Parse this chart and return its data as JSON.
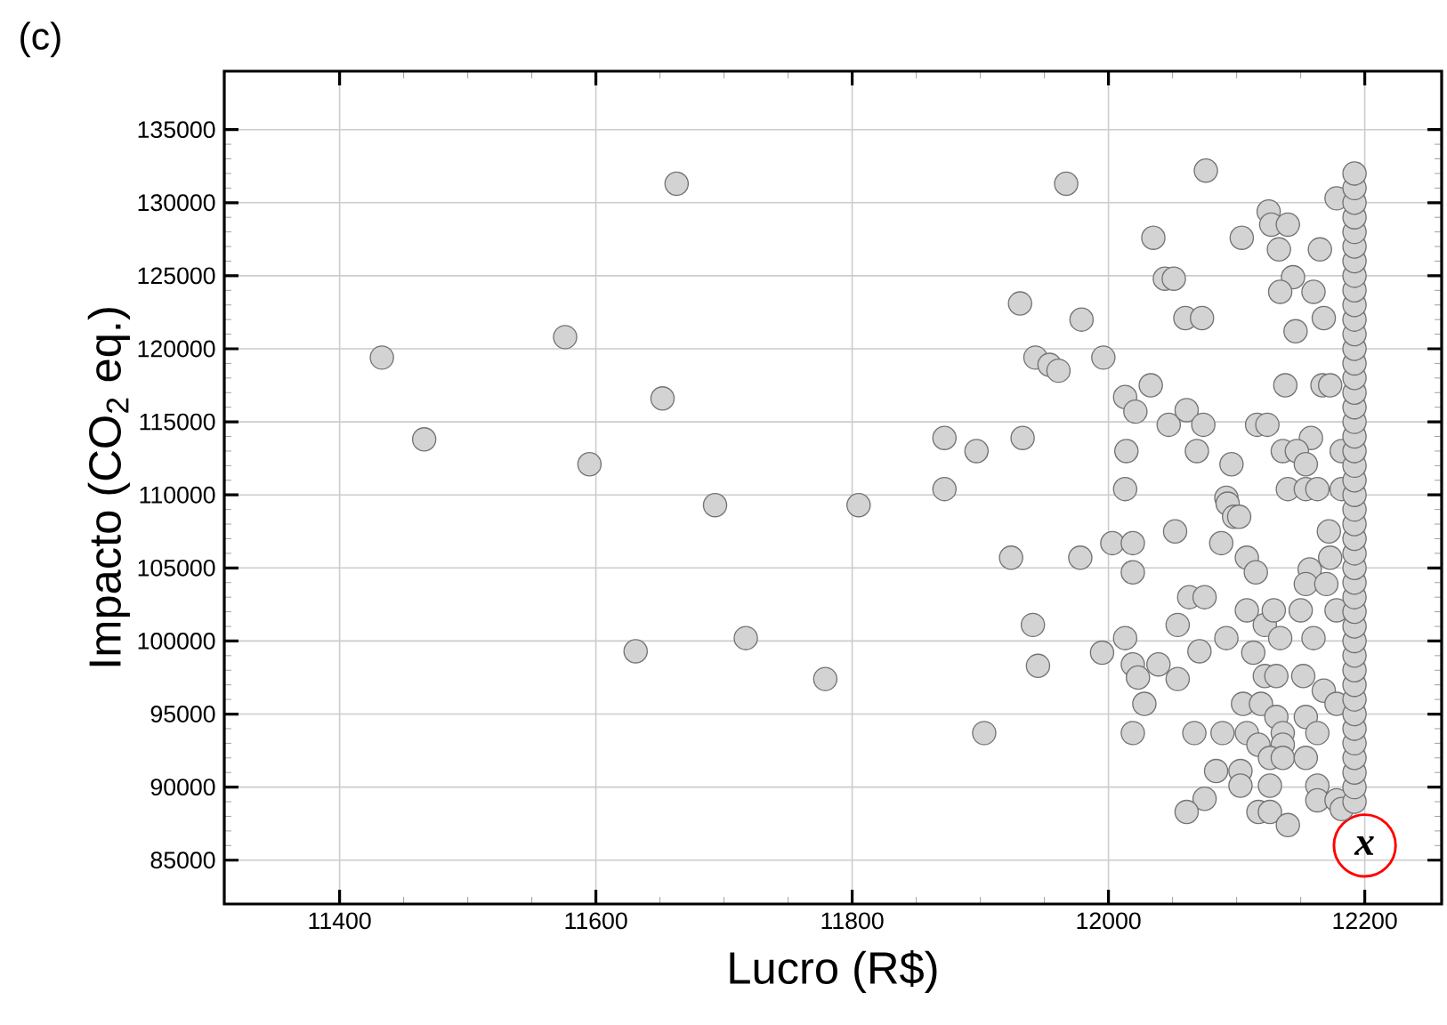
{
  "chart_data": {
    "type": "scatter",
    "xlabel": "Lucro (R$)",
    "ylabel": "Impacto (CO$_{2}$ eq.)",
    "annotations": [
      "(c)",
      {
        "text": "x",
        "x": 12200,
        "y": 86000
      }
    ],
    "xlim": [
      11310,
      12260
    ],
    "ylim": [
      82000,
      139000
    ],
    "xticks": [
      11400,
      11600,
      11800,
      12000,
      12200
    ],
    "yticks": [
      85000,
      90000,
      95000,
      100000,
      105000,
      110000,
      115000,
      120000,
      125000,
      130000,
      135000
    ],
    "grid": true,
    "marker": "circle",
    "series": [
      {
        "color": "#d3d3d3",
        "x": [
          11433,
          11466,
          11663,
          11576,
          11652,
          11595,
          11693,
          11805,
          11631,
          11717,
          11779,
          11967,
          12076,
          12178,
          12125,
          12127,
          12140,
          12035,
          12104,
          12133,
          12165,
          12044,
          12051,
          12144,
          12134,
          12160,
          11931,
          11979,
          12060,
          12073,
          12146,
          12168,
          11943,
          11954,
          11961,
          11996,
          12033,
          12013,
          12021,
          12047,
          12061,
          12074,
          12138,
          12167,
          12173,
          12116,
          12124,
          11872,
          11897,
          11933,
          12014,
          12069,
          12096,
          12158,
          12136,
          12147,
          12154,
          12182,
          11872,
          12013,
          12140,
          12154,
          12163,
          12182,
          12092,
          12093,
          12098,
          12102,
          12052,
          12172,
          11924,
          11978,
          12003,
          12019,
          12088,
          12108,
          12115,
          12019,
          12173,
          12157,
          12154,
          12170,
          12063,
          12075,
          12108,
          12122,
          12129,
          12150,
          12178,
          11941,
          12054,
          12092,
          12134,
          12160,
          12013,
          11995,
          12071,
          12113,
          11945,
          12019,
          12023,
          12039,
          12054,
          12122,
          12131,
          12152,
          12168,
          12028,
          12105,
          12119,
          12154,
          12178,
          11903,
          12019,
          12067,
          12089,
          12108,
          12131,
          12136,
          12163,
          12117,
          12136,
          12126,
          12136,
          12154,
          12084,
          12103,
          12126,
          12163,
          12103,
          12075,
          12061,
          12117,
          12126,
          12140,
          12163,
          12178,
          12182,
          12192,
          12192,
          12192,
          12192,
          12192,
          12192,
          12192,
          12192,
          12192,
          12192,
          12192,
          12192,
          12192,
          12192,
          12192,
          12192,
          12192,
          12192,
          12192,
          12192,
          12192,
          12192,
          12192,
          12192,
          12192,
          12192,
          12192,
          12192,
          12192,
          12192,
          12192,
          12192,
          12192,
          12192,
          12192,
          12192,
          12192,
          12192,
          12192,
          12192,
          12192,
          12192,
          12192,
          12192
        ],
        "values": [
          119400,
          113800,
          131300,
          120800,
          116600,
          112100,
          109300,
          109300,
          99300,
          100200,
          97400,
          131300,
          132200,
          130300,
          129400,
          128500,
          128500,
          127600,
          127600,
          126800,
          126800,
          124800,
          124800,
          124900,
          123900,
          123900,
          123100,
          122000,
          122100,
          122100,
          121200,
          122100,
          119400,
          118900,
          118500,
          119400,
          117500,
          116700,
          115700,
          114800,
          115800,
          114800,
          117500,
          117500,
          117500,
          114800,
          114800,
          113900,
          113000,
          113900,
          113000,
          113000,
          112100,
          113900,
          113000,
          113000,
          112100,
          113000,
          110400,
          110400,
          110400,
          110400,
          110400,
          110400,
          109800,
          109400,
          108500,
          108500,
          107500,
          107500,
          105700,
          105700,
          106700,
          106700,
          106700,
          105700,
          104700,
          104700,
          105700,
          104900,
          103900,
          103900,
          103000,
          103000,
          102100,
          101100,
          102100,
          102100,
          102100,
          101100,
          101100,
          100200,
          100200,
          100200,
          100200,
          99200,
          99300,
          99200,
          98300,
          98400,
          97500,
          98400,
          97400,
          97600,
          97600,
          97600,
          96600,
          95700,
          95700,
          95700,
          94800,
          95700,
          93700,
          93700,
          93700,
          93700,
          93700,
          94800,
          93700,
          93700,
          92900,
          92900,
          92000,
          92000,
          92000,
          91100,
          91100,
          90100,
          90100,
          90100,
          89200,
          88300,
          88300,
          88300,
          87400,
          89100,
          89100,
          88500,
          89000,
          90000,
          91000,
          92000,
          93000,
          94000,
          95000,
          96000,
          97000,
          98000,
          99000,
          100000,
          101000,
          102000,
          103000,
          104000,
          105000,
          106000,
          107000,
          108000,
          109000,
          110000,
          111000,
          112000,
          113000,
          114000,
          115000,
          116000,
          117000,
          118000,
          119000,
          120000,
          121000,
          122000,
          123000,
          124000,
          125000,
          126000,
          127000,
          128000,
          129000,
          130000,
          131000,
          132000
        ]
      }
    ]
  }
}
